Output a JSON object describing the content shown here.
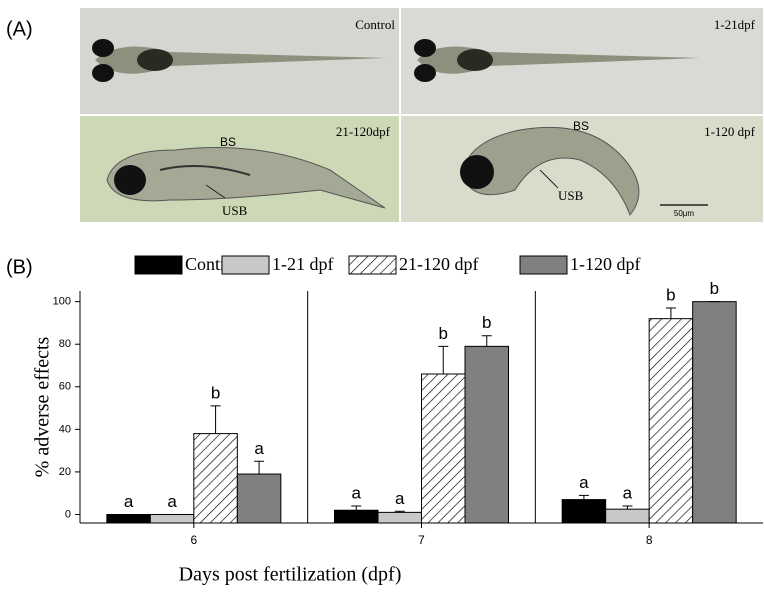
{
  "panel_a": {
    "label": "(A)",
    "images": [
      {
        "label": "Control"
      },
      {
        "label": "1-21dpf"
      },
      {
        "label": "21-120dpf",
        "marks": [
          "BS",
          "USB"
        ]
      },
      {
        "label": "1-120 dpf",
        "marks": [
          "BS",
          "USB"
        ],
        "scale_bar": "50μm"
      }
    ]
  },
  "chart_data": {
    "type": "bar",
    "panel_label": "(B)",
    "x_label": "Days post fertilization (dpf)",
    "y_label": "% adverse effects",
    "categories": [
      "6",
      "7",
      "8"
    ],
    "series": [
      {
        "name": "Control",
        "color": "#000000",
        "hatch": false,
        "values": [
          0,
          2,
          7
        ],
        "errors": [
          0,
          2,
          2
        ],
        "letters": [
          "a",
          "a",
          "a"
        ]
      },
      {
        "name": "1-21 dpf",
        "color": "#c8c8c8",
        "hatch": false,
        "values": [
          0,
          1,
          2.5
        ],
        "errors": [
          0,
          0.5,
          1.5
        ],
        "letters": [
          "a",
          "a",
          "a"
        ]
      },
      {
        "name": "21-120 dpf",
        "color": "#ffffff",
        "hatch": true,
        "values": [
          38,
          66,
          92
        ],
        "errors": [
          13,
          13,
          5
        ],
        "letters": [
          "b",
          "b",
          "b"
        ]
      },
      {
        "name": "1-120 dpf",
        "color": "#808080",
        "hatch": false,
        "values": [
          19,
          79,
          100
        ],
        "errors": [
          6,
          5,
          0
        ],
        "letters": [
          "a",
          "b",
          "b"
        ]
      }
    ],
    "ylim": [
      -4,
      105
    ],
    "yticks": [
      0,
      20,
      40,
      60,
      80,
      100
    ],
    "group_separators": true
  }
}
